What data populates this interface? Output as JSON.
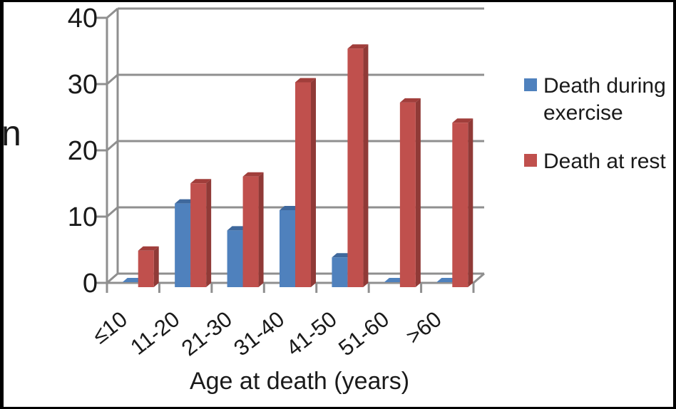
{
  "figure": {
    "ylabel": "n",
    "xlabel": "Age at death (years)"
  },
  "legend": {
    "position": "right",
    "items": [
      {
        "label": "Death during exercise",
        "color": "#4F81BD"
      },
      {
        "label": "Death at rest",
        "color": "#C0504D"
      }
    ]
  },
  "palette": {
    "series_shades": [
      {
        "front": "#4F81BD",
        "top": "#3F689C",
        "side": "#395F8D"
      },
      {
        "front": "#C0504D",
        "top": "#A13E3B",
        "side": "#903A37"
      }
    ],
    "grid": "#8F8F8F",
    "axis": "#8F8F8F",
    "text": "#1A1A1A",
    "frame": "#000000"
  },
  "chart_data": {
    "type": "bar",
    "style": "3d-clustered-column",
    "title": "",
    "xlabel": "Age at death (years)",
    "ylabel": "n",
    "categories": [
      "≤10",
      "11-20",
      "21-30",
      "31-40",
      "41-50",
      "51-60",
      ">60"
    ],
    "series": [
      {
        "name": "Death during exercise",
        "color": "#4F81BD",
        "values": [
          0,
          12,
          8,
          11,
          4,
          0,
          0
        ]
      },
      {
        "name": "Death at rest",
        "color": "#C0504D",
        "values": [
          5,
          15,
          16,
          30,
          35,
          27,
          24
        ]
      }
    ],
    "ylim": [
      0,
      40
    ],
    "yticks": [
      0,
      10,
      20,
      30,
      40
    ],
    "grid": true,
    "legend_position": "right",
    "x_tick_label_rotation_deg": -38
  }
}
